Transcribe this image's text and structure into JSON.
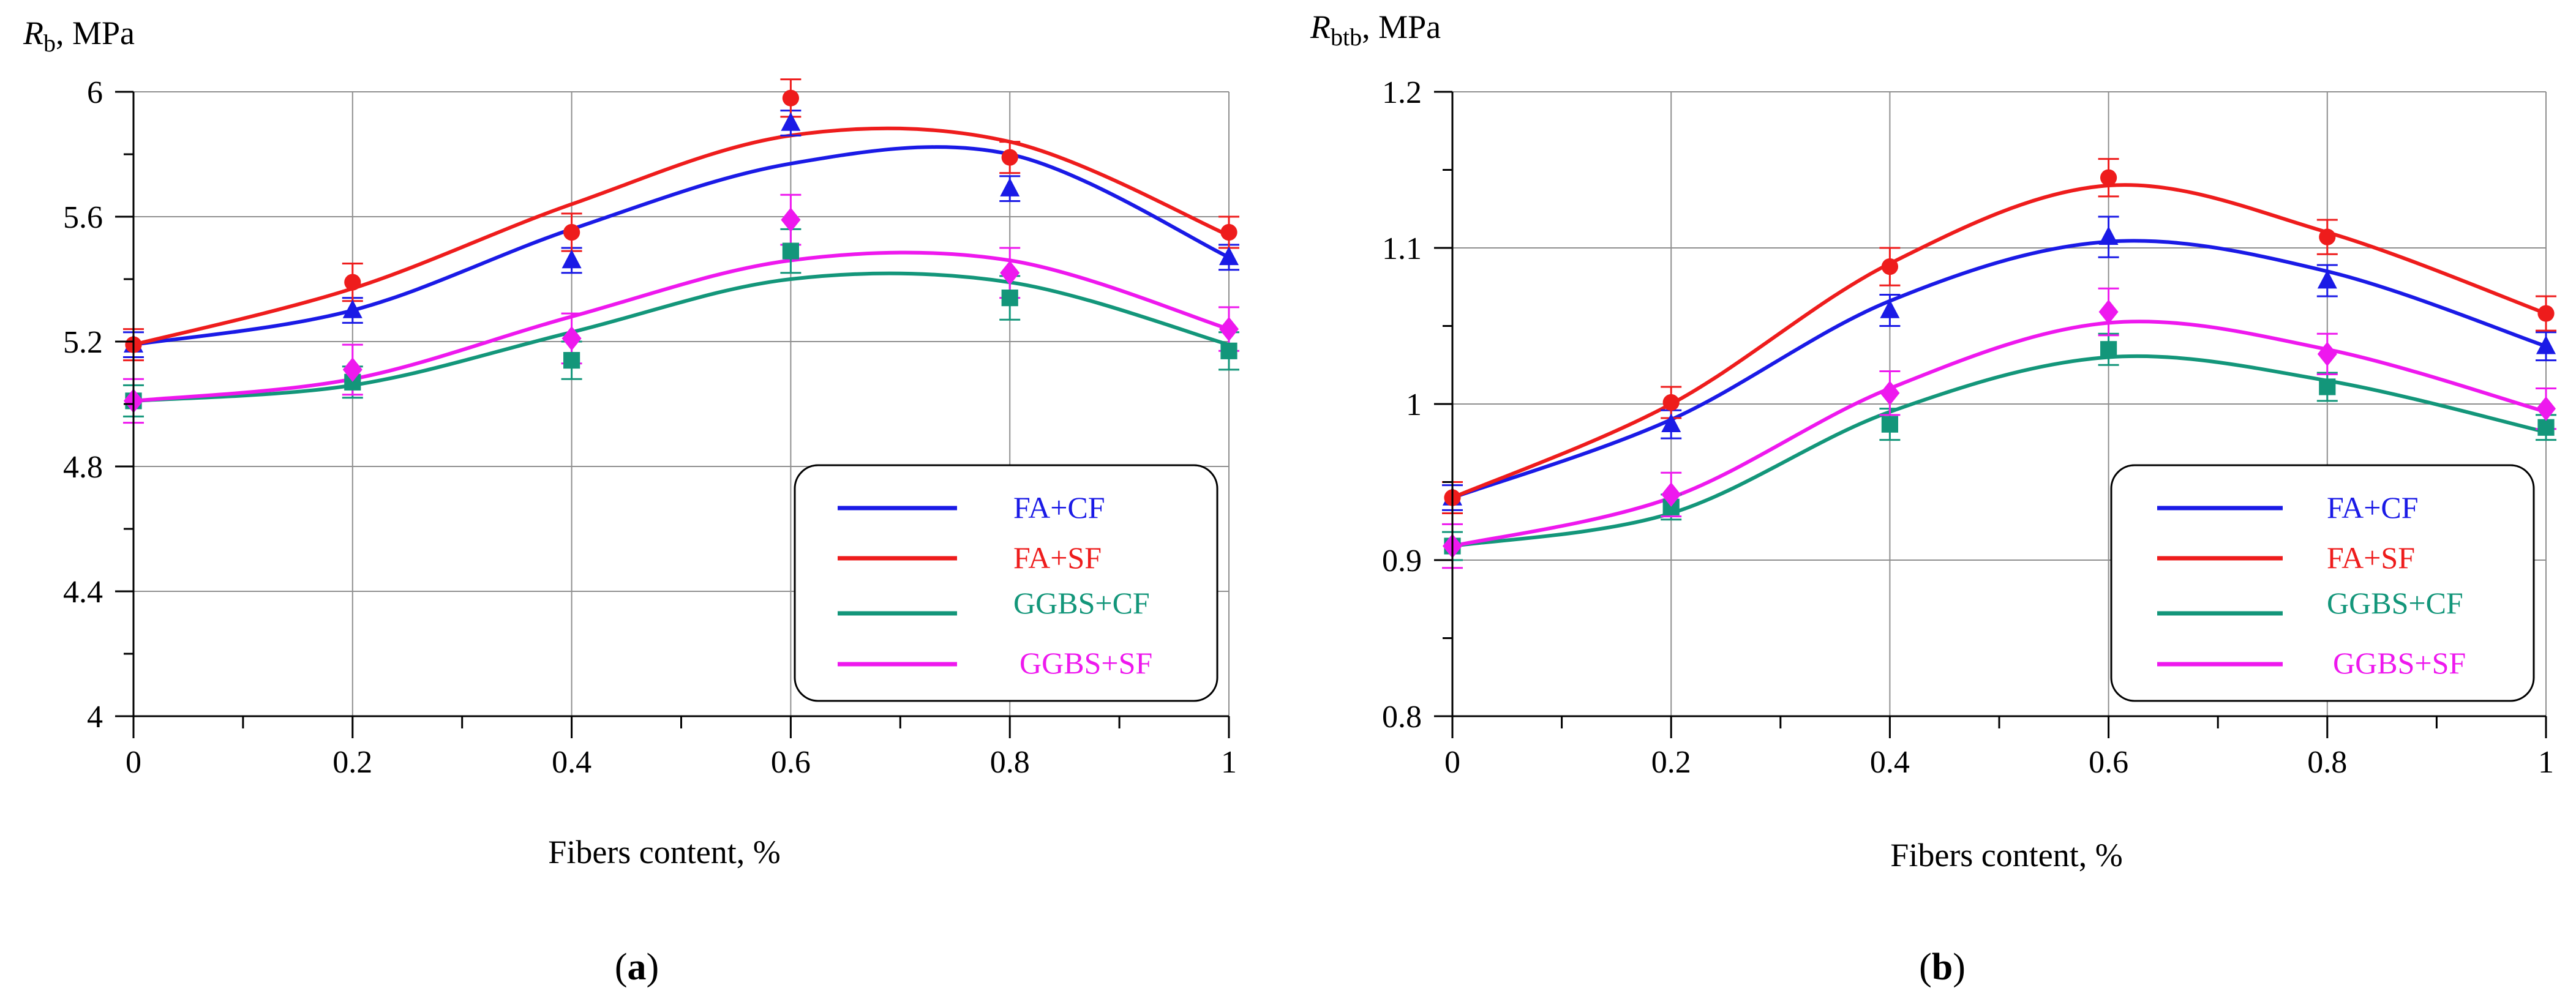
{
  "figure": {
    "panels": [
      {
        "label_open": "(",
        "label_letter": "a",
        "label_close": ")"
      },
      {
        "label_open": "(",
        "label_letter": "b",
        "label_close": ")"
      }
    ]
  },
  "colors": {
    "FA+CF": "#1a1ae6",
    "FA+SF": "#ee1c1c",
    "GGBS+CF": "#13967a",
    "GGBS+SF": "#ee18ee",
    "grid": "#8f8f8f",
    "axis": "#000000"
  },
  "chart_data": [
    {
      "type": "scatter",
      "ylabel_symbol": "R",
      "ylabel_subscript": "b",
      "ylabel_unit": ", MPa",
      "xlabel": "Fibers content, %",
      "xlim": [
        0,
        1
      ],
      "ylim": [
        4,
        6
      ],
      "xticks": [
        0,
        0.2,
        0.4,
        0.6,
        0.8,
        1
      ],
      "xtick_labels": [
        "0",
        "0.2",
        "0.4",
        "0.6",
        "0.8",
        "1"
      ],
      "yticks": [
        4,
        4.4,
        4.8,
        5.2,
        5.6,
        6
      ],
      "ytick_labels": [
        "4",
        "4.4",
        "4.8",
        "5.2",
        "5.6",
        "6"
      ],
      "x": [
        0,
        0.2,
        0.4,
        0.6,
        0.8,
        1
      ],
      "grid": true,
      "legend_position": "lower-right",
      "series": [
        {
          "name": "FA+CF",
          "marker": "triangle",
          "values": [
            5.19,
            5.3,
            5.46,
            5.9,
            5.69,
            5.47
          ],
          "errors": [
            0.04,
            0.04,
            0.04,
            0.04,
            0.04,
            0.04
          ],
          "fit": [
            5.19,
            5.3,
            5.56,
            5.77,
            5.8,
            5.47
          ]
        },
        {
          "name": "FA+SF",
          "marker": "circle",
          "values": [
            5.19,
            5.39,
            5.55,
            5.98,
            5.79,
            5.55
          ],
          "errors": [
            0.05,
            0.06,
            0.06,
            0.06,
            0.05,
            0.05
          ],
          "fit": [
            5.19,
            5.37,
            5.64,
            5.86,
            5.84,
            5.54
          ]
        },
        {
          "name": "GGBS+CF",
          "marker": "square",
          "values": [
            5.01,
            5.07,
            5.14,
            5.49,
            5.34,
            5.17
          ],
          "errors": [
            0.05,
            0.05,
            0.06,
            0.07,
            0.07,
            0.06
          ],
          "fit": [
            5.01,
            5.06,
            5.23,
            5.4,
            5.39,
            5.19
          ]
        },
        {
          "name": "GGBS+SF",
          "marker": "diamond",
          "values": [
            5.01,
            5.11,
            5.21,
            5.59,
            5.42,
            5.24
          ],
          "errors": [
            0.07,
            0.08,
            0.08,
            0.08,
            0.08,
            0.07
          ],
          "fit": [
            5.01,
            5.08,
            5.28,
            5.46,
            5.46,
            5.24
          ]
        }
      ]
    },
    {
      "type": "scatter",
      "ylabel_symbol": "R",
      "ylabel_subscript": "btb",
      "ylabel_unit": ", MPa",
      "xlabel": "Fibers content, %",
      "xlim": [
        0,
        1
      ],
      "ylim": [
        0.8,
        1.2
      ],
      "xticks": [
        0,
        0.2,
        0.4,
        0.6,
        0.8,
        1
      ],
      "xtick_labels": [
        "0",
        "0.2",
        "0.4",
        "0.6",
        "0.8",
        "1"
      ],
      "yticks": [
        0.8,
        0.9,
        1.0,
        1.1,
        1.2
      ],
      "ytick_labels": [
        "0.8",
        "0.9",
        "1",
        "1.1",
        "1.2"
      ],
      "x": [
        0,
        0.2,
        0.4,
        0.6,
        0.8,
        1
      ],
      "grid": true,
      "legend_position": "lower-right",
      "series": [
        {
          "name": "FA+CF",
          "marker": "triangle",
          "values": [
            0.94,
            0.987,
            1.06,
            1.107,
            1.079,
            1.037
          ],
          "errors": [
            0.008,
            0.009,
            0.01,
            0.013,
            0.01,
            0.009
          ],
          "fit": [
            0.94,
            0.99,
            1.066,
            1.104,
            1.085,
            1.037
          ]
        },
        {
          "name": "FA+SF",
          "marker": "circle",
          "values": [
            0.94,
            1.001,
            1.088,
            1.145,
            1.107,
            1.058
          ],
          "errors": [
            0.01,
            0.01,
            0.012,
            0.012,
            0.011,
            0.011
          ],
          "fit": [
            0.94,
            1.0,
            1.09,
            1.14,
            1.11,
            1.058
          ]
        },
        {
          "name": "GGBS+CF",
          "marker": "square",
          "values": [
            0.909,
            0.934,
            0.987,
            1.035,
            1.011,
            0.985
          ],
          "errors": [
            0.009,
            0.008,
            0.01,
            0.01,
            0.009,
            0.008
          ],
          "fit": [
            0.909,
            0.93,
            0.995,
            1.03,
            1.015,
            0.982
          ]
        },
        {
          "name": "GGBS+SF",
          "marker": "diamond",
          "values": [
            0.909,
            0.942,
            1.007,
            1.059,
            1.032,
            0.997
          ],
          "errors": [
            0.014,
            0.014,
            0.014,
            0.015,
            0.013,
            0.013
          ],
          "fit": [
            0.909,
            0.94,
            1.01,
            1.052,
            1.035,
            0.995
          ]
        }
      ]
    }
  ]
}
